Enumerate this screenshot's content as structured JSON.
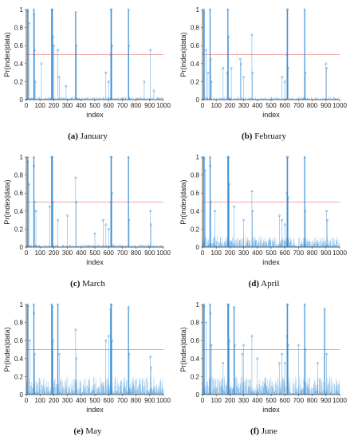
{
  "colors": {
    "stem": "#3a8fd6",
    "threshold": "#e88a8a",
    "axis": "#333333"
  },
  "chart_data": [
    {
      "type": "stem",
      "panel_letter": "(a)",
      "title": "January",
      "xlabel": "index",
      "ylabel": "Pr(index|data)",
      "xlim": [
        0,
        1000
      ],
      "ylim": [
        0,
        1
      ],
      "x_ticks": [
        0,
        100,
        200,
        300,
        400,
        500,
        600,
        700,
        800,
        900,
        1000
      ],
      "y_ticks": [
        0,
        0.2,
        0.4,
        0.6,
        0.8,
        1
      ],
      "threshold": 0.5,
      "noise_level": 0.03,
      "peaks": [
        [
          10,
          1.0
        ],
        [
          12,
          0.98
        ],
        [
          20,
          0.85
        ],
        [
          55,
          1.0
        ],
        [
          57,
          0.95
        ],
        [
          60,
          0.55
        ],
        [
          65,
          0.2
        ],
        [
          110,
          0.4
        ],
        [
          185,
          1.0
        ],
        [
          190,
          1.0
        ],
        [
          195,
          0.7
        ],
        [
          200,
          0.6
        ],
        [
          230,
          0.55
        ],
        [
          240,
          0.25
        ],
        [
          290,
          0.15
        ],
        [
          360,
          0.97
        ],
        [
          365,
          0.6
        ],
        [
          580,
          0.3
        ],
        [
          600,
          0.2
        ],
        [
          615,
          0.5
        ],
        [
          618,
          1.0
        ],
        [
          620,
          1.0
        ],
        [
          625,
          0.6
        ],
        [
          745,
          1.0
        ],
        [
          748,
          0.6
        ],
        [
          860,
          0.2
        ],
        [
          905,
          0.55
        ],
        [
          930,
          0.1
        ]
      ]
    },
    {
      "type": "stem",
      "panel_letter": "(b)",
      "title": "February",
      "xlabel": "index",
      "ylabel": "Pr(index|data)",
      "xlim": [
        0,
        1000
      ],
      "ylim": [
        0,
        1
      ],
      "x_ticks": [
        0,
        100,
        200,
        300,
        400,
        500,
        600,
        700,
        800,
        900,
        1000
      ],
      "y_ticks": [
        0,
        0.2,
        0.4,
        0.6,
        0.8,
        1
      ],
      "threshold": 0.5,
      "noise_level": 0.03,
      "peaks": [
        [
          10,
          1.0
        ],
        [
          12,
          0.97
        ],
        [
          25,
          0.55
        ],
        [
          40,
          0.3
        ],
        [
          55,
          1.0
        ],
        [
          60,
          0.45
        ],
        [
          65,
          0.2
        ],
        [
          150,
          0.35
        ],
        [
          180,
          0.3
        ],
        [
          185,
          1.0
        ],
        [
          190,
          0.7
        ],
        [
          210,
          0.35
        ],
        [
          275,
          0.45
        ],
        [
          280,
          0.4
        ],
        [
          300,
          0.25
        ],
        [
          360,
          0.72
        ],
        [
          365,
          0.3
        ],
        [
          580,
          0.25
        ],
        [
          600,
          0.2
        ],
        [
          615,
          0.5
        ],
        [
          618,
          1.0
        ],
        [
          620,
          1.0
        ],
        [
          625,
          0.35
        ],
        [
          745,
          1.0
        ],
        [
          750,
          0.3
        ],
        [
          900,
          0.4
        ],
        [
          905,
          0.35
        ]
      ]
    },
    {
      "type": "stem",
      "panel_letter": "(c)",
      "title": "March",
      "xlabel": "index",
      "ylabel": "Pr(index|data)",
      "xlim": [
        0,
        1000
      ],
      "ylim": [
        0,
        1
      ],
      "x_ticks": [
        0,
        100,
        200,
        300,
        400,
        500,
        600,
        700,
        800,
        900,
        1000
      ],
      "y_ticks": [
        0,
        0.2,
        0.4,
        0.6,
        0.8,
        1
      ],
      "threshold": 0.5,
      "noise_level": 0.03,
      "peaks": [
        [
          10,
          1.0
        ],
        [
          12,
          0.95
        ],
        [
          20,
          0.7
        ],
        [
          55,
          1.0
        ],
        [
          57,
          0.9
        ],
        [
          60,
          0.5
        ],
        [
          70,
          0.4
        ],
        [
          170,
          0.45
        ],
        [
          185,
          1.0
        ],
        [
          190,
          1.0
        ],
        [
          195,
          0.5
        ],
        [
          230,
          0.3
        ],
        [
          300,
          0.35
        ],
        [
          360,
          0.77
        ],
        [
          365,
          0.5
        ],
        [
          500,
          0.15
        ],
        [
          560,
          0.3
        ],
        [
          580,
          0.25
        ],
        [
          600,
          0.2
        ],
        [
          615,
          0.5
        ],
        [
          618,
          1.0
        ],
        [
          620,
          1.0
        ],
        [
          625,
          0.6
        ],
        [
          745,
          1.0
        ],
        [
          750,
          0.3
        ],
        [
          905,
          0.4
        ],
        [
          910,
          0.25
        ]
      ]
    },
    {
      "type": "stem",
      "panel_letter": "(d)",
      "title": "April",
      "xlabel": "index",
      "ylabel": "Pr(index|data)",
      "xlim": [
        0,
        1000
      ],
      "ylim": [
        0,
        1
      ],
      "x_ticks": [
        0,
        100,
        200,
        300,
        400,
        500,
        600,
        700,
        800,
        900,
        1000
      ],
      "y_ticks": [
        0,
        0.2,
        0.4,
        0.6,
        0.8,
        1
      ],
      "threshold": 0.5,
      "noise_level": 0.12,
      "peaks": [
        [
          10,
          1.0
        ],
        [
          12,
          0.98
        ],
        [
          20,
          0.85
        ],
        [
          55,
          1.0
        ],
        [
          57,
          0.9
        ],
        [
          60,
          0.5
        ],
        [
          90,
          0.4
        ],
        [
          185,
          1.0
        ],
        [
          190,
          1.0
        ],
        [
          195,
          0.7
        ],
        [
          230,
          0.45
        ],
        [
          300,
          0.3
        ],
        [
          360,
          0.62
        ],
        [
          365,
          0.4
        ],
        [
          560,
          0.35
        ],
        [
          580,
          0.3
        ],
        [
          600,
          0.25
        ],
        [
          615,
          0.6
        ],
        [
          618,
          1.0
        ],
        [
          620,
          1.0
        ],
        [
          625,
          0.55
        ],
        [
          745,
          1.0
        ],
        [
          750,
          0.4
        ],
        [
          905,
          0.4
        ],
        [
          910,
          0.3
        ]
      ]
    },
    {
      "type": "stem",
      "panel_letter": "(e)",
      "title": "May",
      "xlabel": "index",
      "ylabel": "Pr(index|data)",
      "xlim": [
        0,
        1000
      ],
      "ylim": [
        0,
        1
      ],
      "x_ticks": [
        0,
        100,
        200,
        300,
        400,
        500,
        600,
        700,
        800,
        900,
        1000
      ],
      "y_ticks": [
        0,
        0.2,
        0.4,
        0.6,
        0.8,
        1
      ],
      "threshold": 0.5,
      "noise_level": 0.2,
      "peaks": [
        [
          10,
          1.0
        ],
        [
          12,
          0.98
        ],
        [
          25,
          0.6
        ],
        [
          55,
          1.0
        ],
        [
          57,
          0.9
        ],
        [
          60,
          0.45
        ],
        [
          185,
          1.0
        ],
        [
          190,
          0.98
        ],
        [
          195,
          0.6
        ],
        [
          230,
          1.0
        ],
        [
          240,
          0.45
        ],
        [
          360,
          0.72
        ],
        [
          365,
          0.4
        ],
        [
          580,
          0.6
        ],
        [
          600,
          0.65
        ],
        [
          615,
          0.95
        ],
        [
          618,
          1.0
        ],
        [
          620,
          1.0
        ],
        [
          625,
          0.6
        ],
        [
          745,
          0.97
        ],
        [
          750,
          0.45
        ],
        [
          905,
          0.42
        ],
        [
          910,
          0.3
        ]
      ]
    },
    {
      "type": "stem",
      "panel_letter": "(f)",
      "title": "June",
      "xlabel": "index",
      "ylabel": "Pr(index|data)",
      "xlim": [
        0,
        1000
      ],
      "ylim": [
        0,
        1
      ],
      "x_ticks": [
        0,
        100,
        200,
        300,
        400,
        500,
        600,
        700,
        800,
        900,
        1000
      ],
      "y_ticks": [
        0,
        0.2,
        0.4,
        0.6,
        0.8,
        1
      ],
      "threshold": 0.5,
      "noise_level": 0.2,
      "peaks": [
        [
          10,
          1.0
        ],
        [
          12,
          0.98
        ],
        [
          25,
          0.8
        ],
        [
          55,
          1.0
        ],
        [
          57,
          0.9
        ],
        [
          65,
          0.55
        ],
        [
          150,
          0.35
        ],
        [
          185,
          1.0
        ],
        [
          190,
          1.0
        ],
        [
          195,
          0.6
        ],
        [
          230,
          0.97
        ],
        [
          235,
          0.55
        ],
        [
          290,
          0.45
        ],
        [
          300,
          0.55
        ],
        [
          360,
          0.65
        ],
        [
          400,
          0.4
        ],
        [
          560,
          0.35
        ],
        [
          580,
          0.45
        ],
        [
          600,
          0.35
        ],
        [
          615,
          0.65
        ],
        [
          618,
          1.0
        ],
        [
          620,
          1.0
        ],
        [
          625,
          0.55
        ],
        [
          700,
          0.55
        ],
        [
          745,
          1.0
        ],
        [
          750,
          0.5
        ],
        [
          840,
          0.35
        ],
        [
          890,
          0.95
        ],
        [
          905,
          0.45
        ]
      ]
    }
  ]
}
